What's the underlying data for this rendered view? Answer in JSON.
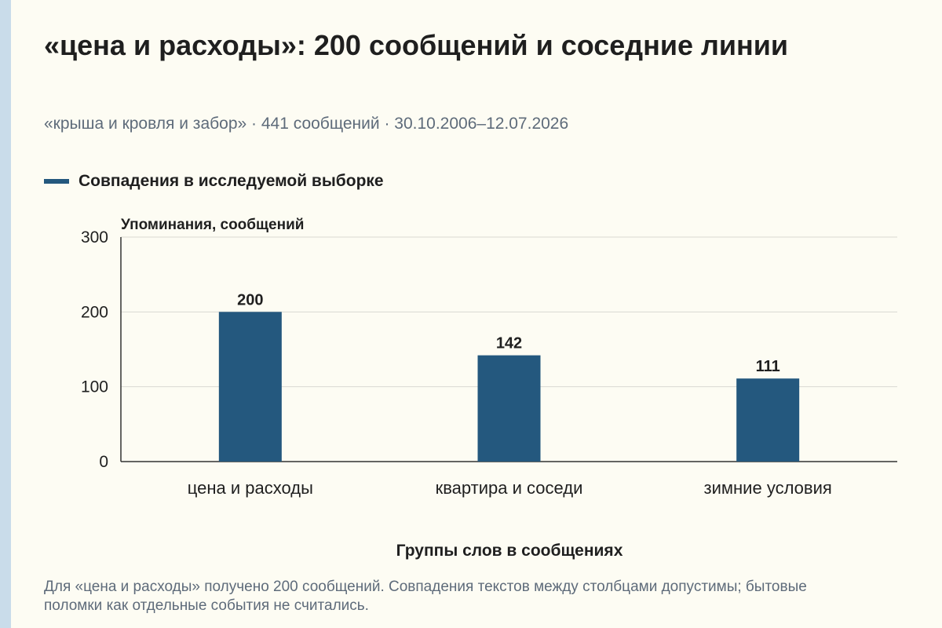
{
  "title": "«цена и расходы»: 200 сообщений и соседние линии",
  "subtitle": "«крыша и кровля и забор» · 441 сообщений · 30.10.2006–12.07.2026",
  "legend": {
    "label": "Совпадения в исследуемой выборке"
  },
  "colors": {
    "bar": "#24587e",
    "background": "#fdfcf3",
    "strip": "#c9dcea"
  },
  "chart_data": {
    "type": "bar",
    "categories": [
      "цена и расходы",
      "квартира и соседи",
      "зимние условия"
    ],
    "series": [
      {
        "name": "Совпадения в исследуемой выборке",
        "values": [
          200,
          142,
          111
        ]
      }
    ],
    "data_labels": [
      "200",
      "142",
      "111"
    ],
    "ylabel": "Упоминания, сообщений",
    "xlabel": "Группы слов в сообщениях",
    "ylim": [
      0,
      300
    ],
    "yticks": [
      0,
      100,
      200,
      300
    ],
    "grid": true,
    "legend_position": "top-left"
  },
  "footnote": "Для «цена и расходы» получено 200 сообщений. Совпадения текстов между столбцами допустимы; бытовые поломки как отдельные события не считались."
}
